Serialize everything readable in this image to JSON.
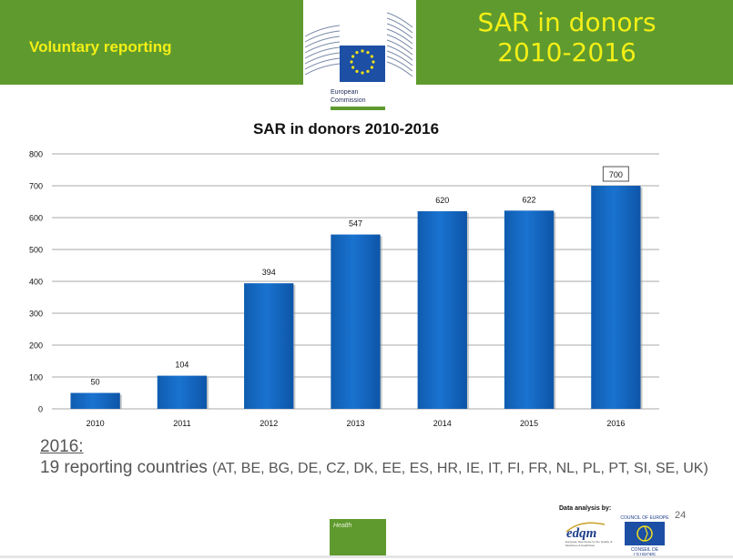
{
  "header": {
    "subtitle": "Voluntary reporting",
    "title_line1": "SAR in donors",
    "title_line2": "2010-2016",
    "brand_color": "#5f9a2e",
    "text_color": "#f3ef16"
  },
  "logo": {
    "line1": "European",
    "line2": "Commission",
    "icon": "eu-flag-icon"
  },
  "chart_data": {
    "type": "bar",
    "title": "SAR in donors 2010-2016",
    "categories": [
      "2010",
      "2011",
      "2012",
      "2013",
      "2014",
      "2015",
      "2016"
    ],
    "values": [
      50,
      104,
      394,
      547,
      620,
      622,
      700
    ],
    "data_labels": [
      "50",
      "104",
      "394",
      "547",
      "620",
      "622",
      "700"
    ],
    "highlighted_label": "700",
    "xlabel": "",
    "ylabel": "",
    "ylim": [
      0,
      800
    ],
    "yticks": [
      0,
      100,
      200,
      300,
      400,
      500,
      600,
      700,
      800
    ],
    "ytick_labels": [
      "0",
      "100",
      "200",
      "300",
      "400",
      "500",
      "600",
      "700",
      "800"
    ],
    "grid": true,
    "bar_color": "#1a73d0"
  },
  "note": {
    "year": "2016:",
    "count": "19 reporting countries ",
    "countries": "(AT, BE, BG, DE, CZ, DK, EE, ES, HR, IE, IT, FI, FR, NL, PL, PT, SI, SE, UK)"
  },
  "footer": {
    "data_analysis": "Data analysis by:",
    "page_number": "24",
    "health": "Health",
    "edqm": "edqm",
    "edqm_small": "European Directorate for the Quality of Medicines & HealthCare",
    "coe_top": "COUNCIL OF EUROPE",
    "coe_bottom": "CONSEIL DE L'EUROPE",
    "edqm_icon": "edqm-logo-icon",
    "coe_icon": "council-of-europe-logo-icon"
  }
}
